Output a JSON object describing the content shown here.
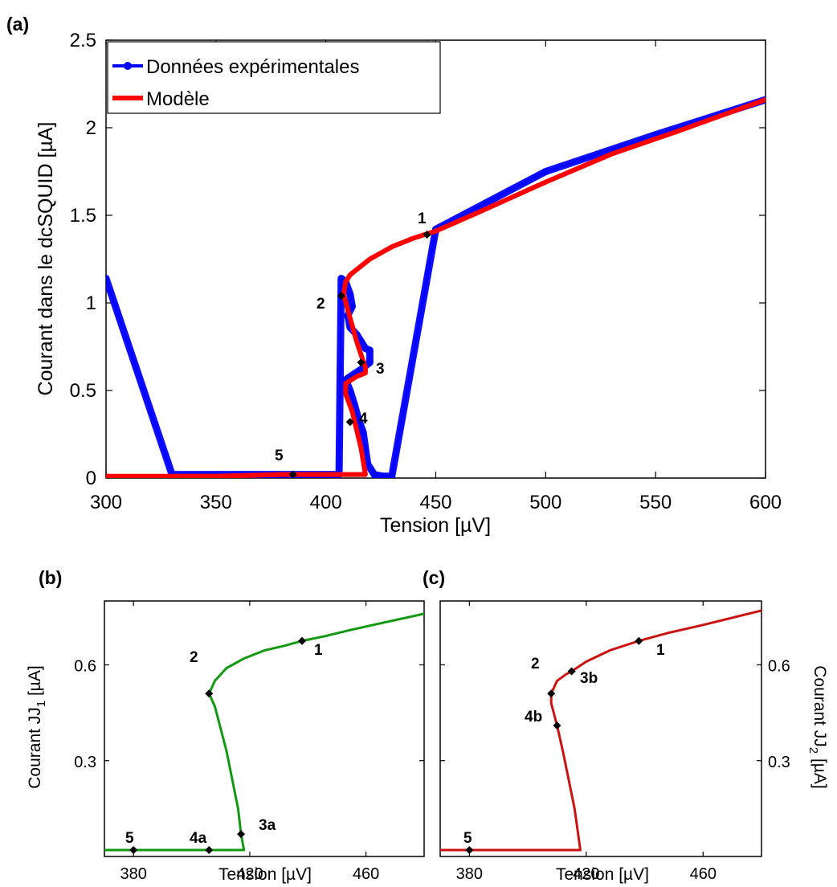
{
  "chart_data": [
    {
      "panel": "(a)",
      "type": "line",
      "xlabel": "Tension [µV]",
      "ylabel": "Courant dans le dcSQUID [µA]",
      "xlim": [
        300,
        600
      ],
      "ylim": [
        0,
        2.5
      ],
      "xticks": [
        "300",
        "350",
        "400",
        "450",
        "500",
        "550",
        "600"
      ],
      "yticks": [
        "0",
        "0.5",
        "1",
        "1.5",
        "2",
        "2.5"
      ],
      "legend_position": "top-left",
      "series": [
        {
          "name": "Données expérimentales",
          "color": "#0000ff",
          "marker": "circle",
          "x": [
            300,
            330,
            378,
            406,
            407,
            409,
            411,
            412,
            410,
            411,
            414,
            416,
            418,
            420,
            420,
            416,
            410,
            409,
            411,
            413,
            415,
            417,
            418,
            419,
            422,
            426,
            430,
            450,
            500,
            550,
            600
          ],
          "y": [
            1.14,
            0.02,
            0.02,
            0.02,
            1.14,
            1.12,
            1.05,
            0.98,
            0.93,
            0.86,
            0.82,
            0.78,
            0.74,
            0.73,
            0.66,
            0.62,
            0.57,
            0.56,
            0.5,
            0.42,
            0.33,
            0.26,
            0.17,
            0.08,
            0.02,
            0.01,
            0.01,
            1.42,
            1.75,
            1.96,
            2.16
          ]
        },
        {
          "name": "Modèle",
          "color": "#ff0000",
          "x": [
            300,
            350,
            380,
            400,
            410,
            418,
            416,
            412,
            409,
            409,
            414,
            418,
            418,
            414,
            410,
            408,
            409,
            411,
            415,
            420,
            430,
            440,
            450,
            470,
            500,
            530,
            560,
            600
          ],
          "y": [
            0.01,
            0.01,
            0.02,
            0.02,
            0.02,
            0.02,
            0.17,
            0.38,
            0.48,
            0.54,
            0.58,
            0.6,
            0.63,
            0.78,
            0.96,
            1.05,
            1.12,
            1.16,
            1.2,
            1.25,
            1.32,
            1.37,
            1.41,
            1.52,
            1.69,
            1.85,
            1.98,
            2.16
          ]
        }
      ],
      "annotations": [
        {
          "label": "1",
          "x": 446,
          "y": 1.39
        },
        {
          "label": "2",
          "x": 407,
          "y": 1.04
        },
        {
          "label": "3",
          "x": 416,
          "y": 0.66
        },
        {
          "label": "4",
          "x": 411,
          "y": 0.32
        },
        {
          "label": "5",
          "x": 385,
          "y": 0.02
        }
      ]
    },
    {
      "panel": "(b)",
      "type": "line",
      "xlabel": "Tension [µV]",
      "ylabel": "Courant JJ",
      "ylabel_subscript": "1",
      "ylabel_unit": " [µA]",
      "xlim": [
        370,
        480
      ],
      "ylim": [
        0,
        0.8
      ],
      "xticks": [
        "380",
        "420",
        "460"
      ],
      "yticks": [
        "0.3",
        "0.6"
      ],
      "series": [
        {
          "color": "#119911",
          "x": [
            370,
            400,
            406,
            416,
            418,
            417,
            416,
            412,
            408,
            406,
            408,
            412,
            418,
            425,
            432,
            438,
            446,
            455,
            465,
            480
          ],
          "y": [
            0.02,
            0.02,
            0.02,
            0.02,
            0.02,
            0.07,
            0.15,
            0.33,
            0.47,
            0.51,
            0.55,
            0.59,
            0.62,
            0.645,
            0.66,
            0.675,
            0.69,
            0.71,
            0.73,
            0.76
          ]
        }
      ],
      "annotations": [
        {
          "label": "1",
          "x": 438,
          "y": 0.675
        },
        {
          "label": "2",
          "x": 406,
          "y": 0.51
        },
        {
          "label": "3a",
          "x": 417,
          "y": 0.07
        },
        {
          "label": "4a",
          "x": 406,
          "y": 0.02
        },
        {
          "label": "5",
          "x": 380,
          "y": 0.02
        }
      ]
    },
    {
      "panel": "(c)",
      "type": "line",
      "xlabel": "Tension [µV]",
      "ylabel": "Courant JJ",
      "ylabel_subscript": "2",
      "ylabel_unit": " [µA]",
      "xlim": [
        370,
        480
      ],
      "ylim": [
        0,
        0.8
      ],
      "xticks": [
        "380",
        "420",
        "460"
      ],
      "yticks": [
        "0.3",
        "0.6"
      ],
      "series": [
        {
          "color": "#cc1111",
          "x": [
            370,
            400,
            418,
            416,
            412,
            410,
            408,
            408,
            410,
            413,
            415,
            420,
            428,
            438,
            448,
            460,
            480
          ],
          "y": [
            0.02,
            0.02,
            0.02,
            0.15,
            0.33,
            0.41,
            0.48,
            0.51,
            0.55,
            0.57,
            0.58,
            0.61,
            0.645,
            0.675,
            0.7,
            0.725,
            0.77
          ]
        }
      ],
      "annotations": [
        {
          "label": "1",
          "x": 438,
          "y": 0.675
        },
        {
          "label": "2",
          "x": 408,
          "y": 0.51
        },
        {
          "label": "3b",
          "x": 415,
          "y": 0.58
        },
        {
          "label": "4b",
          "x": 410,
          "y": 0.41
        },
        {
          "label": "5",
          "x": 380,
          "y": 0.02
        }
      ]
    }
  ]
}
